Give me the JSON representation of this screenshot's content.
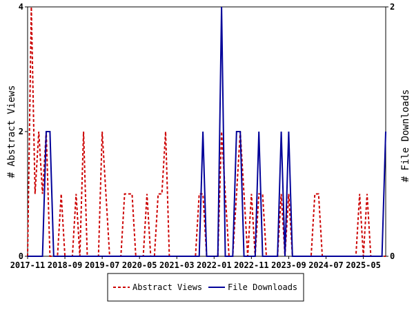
{
  "chart_data": {
    "type": "line",
    "title": "",
    "ylabel": "# Abstract Views",
    "y2label": "# File Downloads",
    "ylim": [
      0,
      4
    ],
    "y2lim": [
      0,
      2
    ],
    "yticks": [
      0,
      2,
      4
    ],
    "y2ticks": [
      0,
      2
    ],
    "x_range": [
      "2017-11",
      "2025-11"
    ],
    "x_tick_labels": [
      "2017-11",
      "2018-09",
      "2019-07",
      "2020-05",
      "2021-03",
      "2022-01",
      "2022-11",
      "2023-09",
      "2024-07",
      "2025-05"
    ],
    "legend_position": "bottom-center",
    "grid": false,
    "series": [
      {
        "name": "Abstract Views",
        "axis": "left",
        "color": "#cc0000",
        "style": "dashed",
        "points": [
          [
            "2017-11",
            0
          ],
          [
            "2017-12",
            4
          ],
          [
            "2018-01",
            1
          ],
          [
            "2018-02",
            2
          ],
          [
            "2018-03",
            1
          ],
          [
            "2018-04",
            2
          ],
          [
            "2018-05",
            0
          ],
          [
            "2018-06",
            0
          ],
          [
            "2018-07",
            0
          ],
          [
            "2018-08",
            1
          ],
          [
            "2018-09",
            0
          ],
          [
            "2018-10",
            0
          ],
          [
            "2018-11",
            0
          ],
          [
            "2018-12",
            1
          ],
          [
            "2019-01",
            0
          ],
          [
            "2019-02",
            2
          ],
          [
            "2019-03",
            0
          ],
          [
            "2019-04",
            0
          ],
          [
            "2019-05",
            0
          ],
          [
            "2019-06",
            0
          ],
          [
            "2019-07",
            2
          ],
          [
            "2019-08",
            1
          ],
          [
            "2019-09",
            0
          ],
          [
            "2019-10",
            0
          ],
          [
            "2019-11",
            0
          ],
          [
            "2019-12",
            0
          ],
          [
            "2020-01",
            1
          ],
          [
            "2020-02",
            1
          ],
          [
            "2020-03",
            1
          ],
          [
            "2020-04",
            0
          ],
          [
            "2020-05",
            0
          ],
          [
            "2020-06",
            0
          ],
          [
            "2020-07",
            1
          ],
          [
            "2020-08",
            0
          ],
          [
            "2020-09",
            0
          ],
          [
            "2020-10",
            1
          ],
          [
            "2020-11",
            1
          ],
          [
            "2020-12",
            2
          ],
          [
            "2021-01",
            0
          ],
          [
            "2021-02",
            0
          ],
          [
            "2021-03",
            0
          ],
          [
            "2021-04",
            0
          ],
          [
            "2021-05",
            0
          ],
          [
            "2021-06",
            0
          ],
          [
            "2021-07",
            0
          ],
          [
            "2021-08",
            0
          ],
          [
            "2021-09",
            1
          ],
          [
            "2021-10",
            1
          ],
          [
            "2021-11",
            0
          ],
          [
            "2021-12",
            0
          ],
          [
            "2022-01",
            0
          ],
          [
            "2022-02",
            0
          ],
          [
            "2022-03",
            2
          ],
          [
            "2022-04",
            1
          ],
          [
            "2022-05",
            0
          ],
          [
            "2022-06",
            0
          ],
          [
            "2022-07",
            1
          ],
          [
            "2022-08",
            2
          ],
          [
            "2022-09",
            1
          ],
          [
            "2022-10",
            0
          ],
          [
            "2022-11",
            1
          ],
          [
            "2022-12",
            0
          ],
          [
            "2023-01",
            1
          ],
          [
            "2023-02",
            1
          ],
          [
            "2023-03",
            0
          ],
          [
            "2023-04",
            0
          ],
          [
            "2023-05",
            0
          ],
          [
            "2023-06",
            0
          ],
          [
            "2023-07",
            1
          ],
          [
            "2023-08",
            0
          ],
          [
            "2023-09",
            1
          ],
          [
            "2023-10",
            0
          ],
          [
            "2023-11",
            0
          ],
          [
            "2023-12",
            0
          ],
          [
            "2024-01",
            0
          ],
          [
            "2024-02",
            0
          ],
          [
            "2024-03",
            0
          ],
          [
            "2024-04",
            1
          ],
          [
            "2024-05",
            1
          ],
          [
            "2024-06",
            0
          ],
          [
            "2024-07",
            0
          ],
          [
            "2024-08",
            0
          ],
          [
            "2024-09",
            0
          ],
          [
            "2024-10",
            0
          ],
          [
            "2024-11",
            0
          ],
          [
            "2024-12",
            0
          ],
          [
            "2025-01",
            0
          ],
          [
            "2025-02",
            0
          ],
          [
            "2025-03",
            0
          ],
          [
            "2025-04",
            1
          ],
          [
            "2025-05",
            0
          ],
          [
            "2025-06",
            1
          ],
          [
            "2025-07",
            0
          ],
          [
            "2025-08",
            0
          ],
          [
            "2025-09",
            0
          ],
          [
            "2025-10",
            0
          ],
          [
            "2025-11",
            0
          ]
        ]
      },
      {
        "name": "File Downloads",
        "axis": "right",
        "color": "#000099",
        "style": "solid",
        "points": [
          [
            "2017-11",
            0
          ],
          [
            "2017-12",
            0
          ],
          [
            "2018-01",
            0
          ],
          [
            "2018-02",
            0
          ],
          [
            "2018-03",
            0
          ],
          [
            "2018-04",
            1
          ],
          [
            "2018-05",
            1
          ],
          [
            "2018-06",
            0
          ],
          [
            "2018-07",
            0
          ],
          [
            "2018-08",
            0
          ],
          [
            "2018-09",
            0
          ],
          [
            "2018-10",
            0
          ],
          [
            "2018-11",
            0
          ],
          [
            "2018-12",
            0
          ],
          [
            "2019-01",
            0
          ],
          [
            "2019-02",
            0
          ],
          [
            "2019-03",
            0
          ],
          [
            "2019-04",
            0
          ],
          [
            "2019-05",
            0
          ],
          [
            "2019-06",
            0
          ],
          [
            "2019-07",
            0
          ],
          [
            "2019-08",
            0
          ],
          [
            "2019-09",
            0
          ],
          [
            "2019-10",
            0
          ],
          [
            "2019-11",
            0
          ],
          [
            "2019-12",
            0
          ],
          [
            "2020-01",
            0
          ],
          [
            "2020-02",
            0
          ],
          [
            "2020-03",
            0
          ],
          [
            "2020-04",
            0
          ],
          [
            "2020-05",
            0
          ],
          [
            "2020-06",
            0
          ],
          [
            "2020-07",
            0
          ],
          [
            "2020-08",
            0
          ],
          [
            "2020-09",
            0
          ],
          [
            "2020-10",
            0
          ],
          [
            "2020-11",
            0
          ],
          [
            "2020-12",
            0
          ],
          [
            "2021-01",
            0
          ],
          [
            "2021-02",
            0
          ],
          [
            "2021-03",
            0
          ],
          [
            "2021-04",
            0
          ],
          [
            "2021-05",
            0
          ],
          [
            "2021-06",
            0
          ],
          [
            "2021-07",
            0
          ],
          [
            "2021-08",
            0
          ],
          [
            "2021-09",
            0
          ],
          [
            "2021-10",
            1
          ],
          [
            "2021-11",
            0
          ],
          [
            "2021-12",
            0
          ],
          [
            "2022-01",
            0
          ],
          [
            "2022-02",
            0
          ],
          [
            "2022-03",
            2
          ],
          [
            "2022-04",
            0
          ],
          [
            "2022-05",
            0
          ],
          [
            "2022-06",
            0
          ],
          [
            "2022-07",
            1
          ],
          [
            "2022-08",
            1
          ],
          [
            "2022-09",
            0
          ],
          [
            "2022-10",
            0
          ],
          [
            "2022-11",
            0
          ],
          [
            "2022-12",
            0
          ],
          [
            "2023-01",
            1
          ],
          [
            "2023-02",
            0
          ],
          [
            "2023-03",
            0
          ],
          [
            "2023-04",
            0
          ],
          [
            "2023-05",
            0
          ],
          [
            "2023-06",
            0
          ],
          [
            "2023-07",
            1
          ],
          [
            "2023-08",
            0
          ],
          [
            "2023-09",
            1
          ],
          [
            "2023-10",
            0
          ],
          [
            "2023-11",
            0
          ],
          [
            "2023-12",
            0
          ],
          [
            "2024-01",
            0
          ],
          [
            "2024-02",
            0
          ],
          [
            "2024-03",
            0
          ],
          [
            "2024-04",
            0
          ],
          [
            "2024-05",
            0
          ],
          [
            "2024-06",
            0
          ],
          [
            "2024-07",
            0
          ],
          [
            "2024-08",
            0
          ],
          [
            "2024-09",
            0
          ],
          [
            "2024-10",
            0
          ],
          [
            "2024-11",
            0
          ],
          [
            "2024-12",
            0
          ],
          [
            "2025-01",
            0
          ],
          [
            "2025-02",
            0
          ],
          [
            "2025-03",
            0
          ],
          [
            "2025-04",
            0
          ],
          [
            "2025-05",
            0
          ],
          [
            "2025-06",
            0
          ],
          [
            "2025-07",
            0
          ],
          [
            "2025-08",
            0
          ],
          [
            "2025-09",
            0
          ],
          [
            "2025-10",
            0
          ],
          [
            "2025-11",
            1
          ]
        ]
      }
    ]
  }
}
